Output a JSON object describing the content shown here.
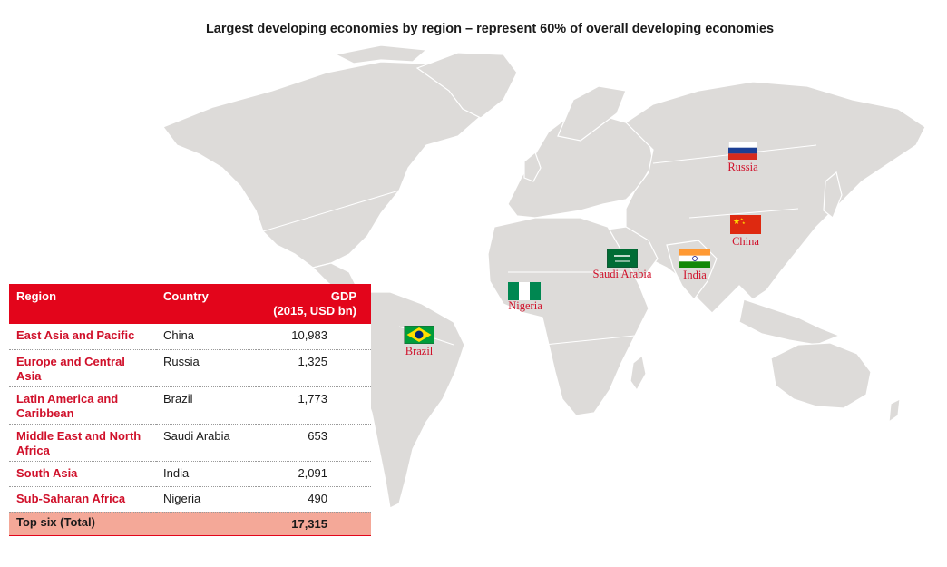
{
  "title": "Largest developing economies by region – represent 60% of overall developing economies",
  "markers": [
    {
      "country": "Russia",
      "flag": "russia-flag"
    },
    {
      "country": "China",
      "flag": "china-flag"
    },
    {
      "country": "Saudi Arabia",
      "flag": "saudi-arabia-flag"
    },
    {
      "country": "India",
      "flag": "india-flag"
    },
    {
      "country": "Nigeria",
      "flag": "nigeria-flag"
    },
    {
      "country": "Brazil",
      "flag": "brazil-flag"
    }
  ],
  "table": {
    "headers": {
      "region": "Region",
      "country": "Country",
      "gdp_line1": "GDP",
      "gdp_line2": "(2015, USD bn)"
    },
    "rows": [
      {
        "region": "East Asia and Pacific",
        "country": "China",
        "gdp": "10,983"
      },
      {
        "region": "Europe and Central Asia",
        "country": "Russia",
        "gdp": "1,325"
      },
      {
        "region": "Latin America and Caribbean",
        "country": "Brazil",
        "gdp": "1,773"
      },
      {
        "region": "Middle East and North Africa",
        "country": "Saudi Arabia",
        "gdp": "653"
      },
      {
        "region": "South Asia",
        "country": "India",
        "gdp": "2,091"
      },
      {
        "region": "Sub-Saharan Africa",
        "country": "Nigeria",
        "gdp": "490"
      }
    ],
    "total": {
      "label": "Top six (Total)",
      "gdp": "17,315"
    }
  },
  "colors": {
    "accent_red": "#e3051b",
    "label_red": "#d0102a",
    "total_row": "#f4a898",
    "land": "#dddbd9"
  }
}
